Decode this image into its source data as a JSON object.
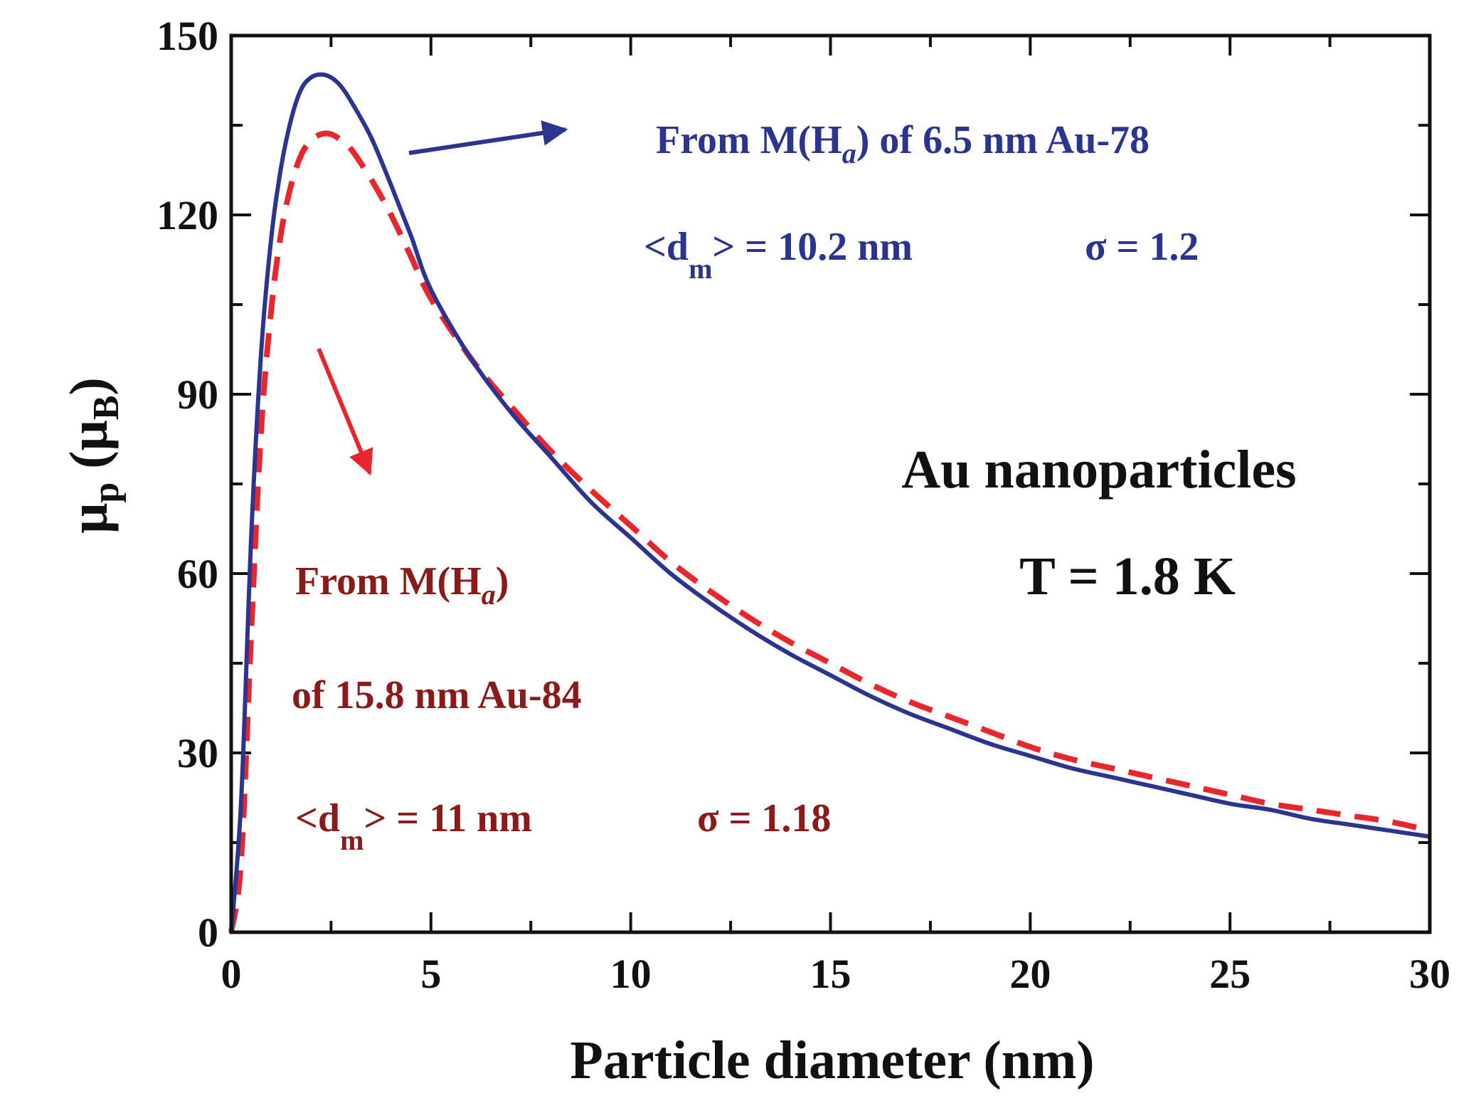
{
  "chart_data": {
    "type": "line",
    "xlabel": "Particle diameter (nm)",
    "ylabel": {
      "main": "μ",
      "sub": "p",
      "open": " (μ",
      "sub2": "B",
      "close": ")"
    },
    "xlim": [
      0,
      30
    ],
    "ylim": [
      0,
      150
    ],
    "xticks": [
      0,
      5,
      10,
      15,
      20,
      25,
      30
    ],
    "yticks": [
      0,
      30,
      60,
      90,
      120,
      150
    ],
    "colors": {
      "blue": "#2b3590",
      "red": "#e8262b",
      "dark_red": "#8b1a1a",
      "axis": "#111111"
    },
    "series": [
      {
        "name": "From M(Ha) of 6.5 nm Au-78",
        "style": "solid",
        "color": "#2b3590",
        "x": [
          0,
          0.25,
          0.5,
          0.75,
          1.0,
          1.25,
          1.5,
          1.75,
          2.0,
          2.25,
          2.5,
          2.75,
          3.0,
          3.5,
          4.0,
          4.5,
          5.0,
          6.0,
          7.0,
          8.0,
          9.0,
          10.0,
          11.0,
          12.0,
          13.0,
          14.0,
          15.0,
          16.0,
          17.0,
          18.0,
          19.0,
          20.0,
          21.0,
          22.0,
          23.0,
          24.0,
          25.0,
          26.0,
          27.0,
          28.0,
          29.0,
          30.0
        ],
        "y": [
          0,
          22,
          66,
          97,
          116,
          128,
          136,
          141,
          143,
          143.5,
          143,
          141.5,
          139,
          133,
          125,
          116.5,
          107.5,
          96,
          87,
          79.5,
          72,
          66,
          60,
          55,
          50.5,
          46.5,
          43,
          39.5,
          36.5,
          34,
          31.5,
          29.5,
          27.5,
          26,
          24.5,
          23,
          21.5,
          20.5,
          19,
          18,
          17,
          16
        ]
      },
      {
        "name": "From M(Ha) of 15.8 nm Au-84",
        "style": "dashed",
        "color": "#e8262b",
        "x": [
          0,
          0.25,
          0.5,
          0.75,
          1.0,
          1.25,
          1.5,
          1.75,
          2.0,
          2.25,
          2.5,
          2.75,
          3.0,
          3.5,
          4.0,
          4.5,
          5.0,
          6.0,
          7.0,
          8.0,
          9.0,
          10.0,
          11.0,
          12.0,
          13.0,
          14.0,
          15.0,
          16.0,
          17.0,
          18.0,
          19.0,
          20.0,
          21.0,
          22.0,
          23.0,
          24.0,
          25.0,
          26.0,
          27.0,
          28.0,
          29.0,
          30.0
        ],
        "y": [
          0,
          12,
          50,
          84,
          104,
          117,
          125,
          130,
          132.5,
          133.5,
          133.5,
          132.5,
          131,
          126,
          120,
          113,
          106,
          96,
          88,
          80.5,
          74,
          68,
          62,
          57,
          52.5,
          48.5,
          45,
          41.5,
          38.5,
          36,
          33.5,
          31,
          29,
          27.5,
          26,
          24.5,
          23,
          21.5,
          20.5,
          19.5,
          18.5,
          17
        ]
      }
    ],
    "annotations": {
      "blue_title": {
        "prefix": "From M(H",
        "sub": "a",
        "suffix": ") of 6.5 nm Au-78"
      },
      "blue_dm": {
        "prefix": "<d",
        "sub": "m",
        "suffix": "> = 10.2 nm"
      },
      "blue_sigma": "σ = 1.2",
      "red_title": {
        "prefix": "From M(H",
        "sub": "a",
        "suffix": ")"
      },
      "red_line2": "of 15.8 nm Au-84",
      "red_dm": {
        "prefix": "<d",
        "sub": "m",
        "suffix": "> = 11 nm"
      },
      "red_sigma": "σ = 1.18",
      "sample": "Au nanoparticles",
      "temperature": "T = 1.8 K"
    }
  }
}
